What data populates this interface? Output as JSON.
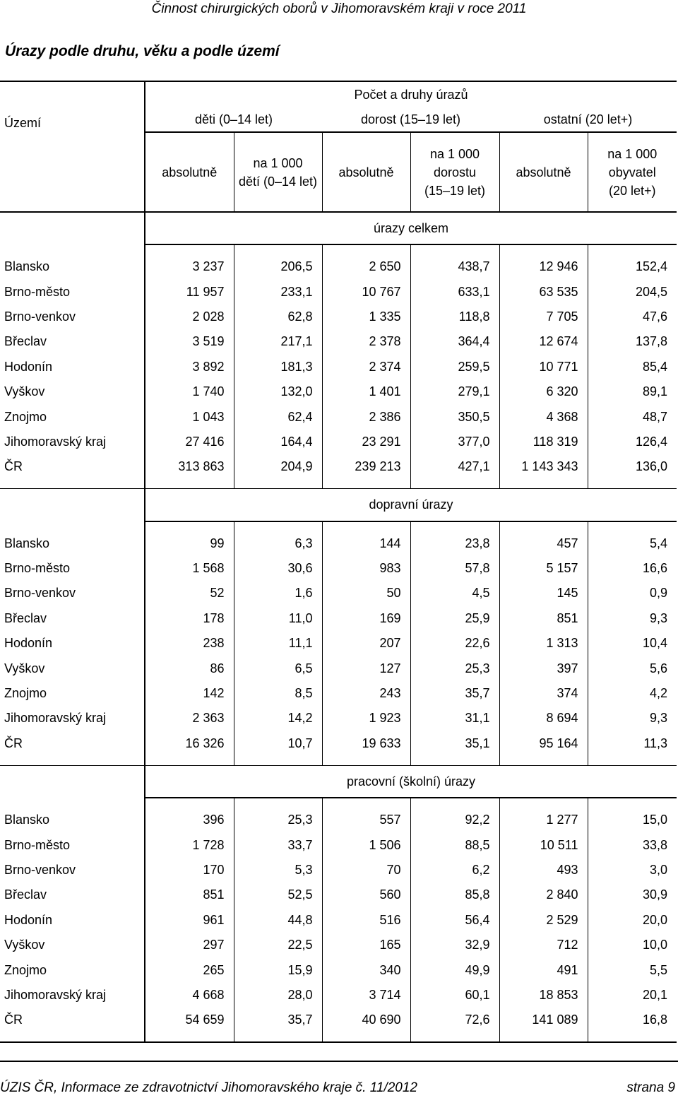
{
  "running_header": "Činnost chirurgických oborů v Jihomoravském kraji v roce 2011",
  "title": "Úrazy podle druhu, věku a podle území",
  "table": {
    "header_territory": "Území",
    "header_main": "Počet a druhy úrazů",
    "groups": [
      "děti (0–14 let)",
      "dorost (15–19 let)",
      "ostatní (20 let+)"
    ],
    "subcols": [
      [
        "absolutně"
      ],
      [
        "na 1 000",
        "dětí (0–14 let)"
      ],
      [
        "absolutně"
      ],
      [
        "na 1 000",
        "dorostu",
        "(15–19 let)"
      ],
      [
        "absolutně"
      ],
      [
        "na 1 000",
        "obyvatel",
        "(20 let+)"
      ]
    ],
    "sections": [
      {
        "title": "úrazy celkem",
        "rows": [
          [
            "Blansko",
            "3 237",
            "206,5",
            "2 650",
            "438,7",
            "12 946",
            "152,4"
          ],
          [
            "Brno-město",
            "11 957",
            "233,1",
            "10 767",
            "633,1",
            "63 535",
            "204,5"
          ],
          [
            "Brno-venkov",
            "2 028",
            "62,8",
            "1 335",
            "118,8",
            "7 705",
            "47,6"
          ],
          [
            "Břeclav",
            "3 519",
            "217,1",
            "2 378",
            "364,4",
            "12 674",
            "137,8"
          ],
          [
            "Hodonín",
            "3 892",
            "181,3",
            "2 374",
            "259,5",
            "10 771",
            "85,4"
          ],
          [
            "Vyškov",
            "1 740",
            "132,0",
            "1 401",
            "279,1",
            "6 320",
            "89,1"
          ],
          [
            "Znojmo",
            "1 043",
            "62,4",
            "2 386",
            "350,5",
            "4 368",
            "48,7"
          ],
          [
            "Jihomoravský kraj",
            "27 416",
            "164,4",
            "23 291",
            "377,0",
            "118 319",
            "126,4"
          ],
          [
            "ČR",
            "313 863",
            "204,9",
            "239 213",
            "427,1",
            "1 143 343",
            "136,0"
          ]
        ]
      },
      {
        "title": "dopravní úrazy",
        "rows": [
          [
            "Blansko",
            "99",
            "6,3",
            "144",
            "23,8",
            "457",
            "5,4"
          ],
          [
            "Brno-město",
            "1 568",
            "30,6",
            "983",
            "57,8",
            "5 157",
            "16,6"
          ],
          [
            "Brno-venkov",
            "52",
            "1,6",
            "50",
            "4,5",
            "145",
            "0,9"
          ],
          [
            "Břeclav",
            "178",
            "11,0",
            "169",
            "25,9",
            "851",
            "9,3"
          ],
          [
            "Hodonín",
            "238",
            "11,1",
            "207",
            "22,6",
            "1 313",
            "10,4"
          ],
          [
            "Vyškov",
            "86",
            "6,5",
            "127",
            "25,3",
            "397",
            "5,6"
          ],
          [
            "Znojmo",
            "142",
            "8,5",
            "243",
            "35,7",
            "374",
            "4,2"
          ],
          [
            "Jihomoravský kraj",
            "2 363",
            "14,2",
            "1 923",
            "31,1",
            "8 694",
            "9,3"
          ],
          [
            "ČR",
            "16 326",
            "10,7",
            "19 633",
            "35,1",
            "95 164",
            "11,3"
          ]
        ]
      },
      {
        "title": "pracovní (školní) úrazy",
        "rows": [
          [
            "Blansko",
            "396",
            "25,3",
            "557",
            "92,2",
            "1 277",
            "15,0"
          ],
          [
            "Brno-město",
            "1 728",
            "33,7",
            "1 506",
            "88,5",
            "10 511",
            "33,8"
          ],
          [
            "Brno-venkov",
            "170",
            "5,3",
            "70",
            "6,2",
            "493",
            "3,0"
          ],
          [
            "Břeclav",
            "851",
            "52,5",
            "560",
            "85,8",
            "2 840",
            "30,9"
          ],
          [
            "Hodonín",
            "961",
            "44,8",
            "516",
            "56,4",
            "2 529",
            "20,0"
          ],
          [
            "Vyškov",
            "297",
            "22,5",
            "165",
            "32,9",
            "712",
            "10,0"
          ],
          [
            "Znojmo",
            "265",
            "15,9",
            "340",
            "49,9",
            "491",
            "5,5"
          ],
          [
            "Jihomoravský kraj",
            "4 668",
            "28,0",
            "3 714",
            "60,1",
            "18 853",
            "20,1"
          ],
          [
            "ČR",
            "54 659",
            "35,7",
            "40 690",
            "72,6",
            "141 089",
            "16,8"
          ]
        ]
      }
    ]
  },
  "footer": {
    "left": "ÚZIS ČR, Informace ze zdravotnictví Jihomoravského kraje č. 11/2012",
    "right": "strana 9"
  }
}
